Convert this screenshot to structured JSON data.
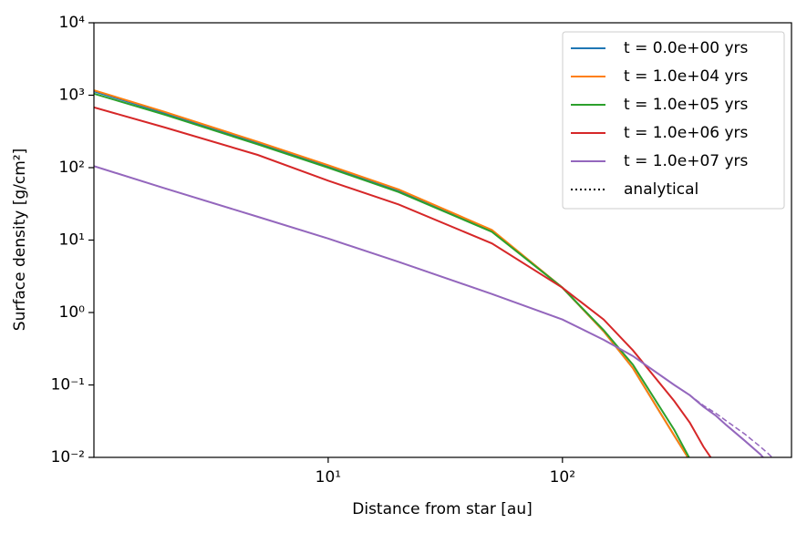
{
  "chart_data": {
    "type": "line",
    "xlabel": "Distance from star [au]",
    "ylabel": "Surface density [g/cm²]",
    "xscale": "log",
    "yscale": "log",
    "xlim": [
      1,
      950
    ],
    "ylim": [
      0.01,
      10000
    ],
    "xticks": [
      {
        "value": 10,
        "label": "10¹"
      },
      {
        "value": 100,
        "label": "10²"
      }
    ],
    "yticks": [
      {
        "value": 0.01,
        "label": "10⁻²"
      },
      {
        "value": 0.1,
        "label": "10⁻¹"
      },
      {
        "value": 1,
        "label": "10⁰"
      },
      {
        "value": 10,
        "label": "10¹"
      },
      {
        "value": 100,
        "label": "10²"
      },
      {
        "value": 1000,
        "label": "10³"
      },
      {
        "value": 10000,
        "label": "10⁴"
      }
    ],
    "legend": "upper right",
    "x": [
      1,
      2,
      5,
      10,
      20,
      50,
      100,
      150,
      200,
      300,
      350,
      400,
      450,
      500,
      600,
      700,
      750,
      800
    ],
    "series": [
      {
        "name": "t = 0.0e+00 yrs",
        "color": "#1f77b4",
        "values": [
          1130,
          570,
          220,
          105,
          48,
          13.5,
          2.2,
          0.55,
          0.17,
          0.02,
          0.009,
          null,
          null,
          null,
          null,
          null,
          null,
          null
        ]
      },
      {
        "name": "t = 1.0e+04 yrs",
        "color": "#ff7f0e",
        "values": [
          1170,
          590,
          228,
          108,
          50,
          13.8,
          2.2,
          0.55,
          0.17,
          0.02,
          0.009,
          null,
          null,
          null,
          null,
          null,
          null,
          null
        ]
      },
      {
        "name": "t = 1.0e+05 yrs",
        "color": "#2ca02c",
        "values": [
          1050,
          540,
          210,
          100,
          46,
          13,
          2.2,
          0.57,
          0.19,
          0.024,
          0.0095,
          null,
          null,
          null,
          null,
          null,
          null,
          null
        ]
      },
      {
        "name": "t = 1.0e+06 yrs",
        "color": "#d62728",
        "values": [
          680,
          360,
          150,
          66,
          31,
          9,
          2.2,
          0.8,
          0.3,
          0.06,
          0.03,
          0.014,
          0.008,
          null,
          null,
          null,
          null,
          null
        ]
      },
      {
        "name": "t = 1.0e+07 yrs",
        "color": "#9467bd",
        "values": [
          105,
          52,
          21,
          10.5,
          5,
          1.8,
          0.8,
          0.42,
          0.25,
          0.1,
          0.072,
          0.05,
          0.038,
          0.028,
          0.017,
          0.011,
          0.0085,
          null
        ]
      },
      {
        "name": "analytical",
        "color": "#000000",
        "style": "dotted",
        "curve_color": "#9467bd",
        "values": [
          105,
          52,
          21,
          10.5,
          5,
          1.8,
          0.8,
          0.42,
          0.25,
          0.1,
          0.072,
          0.052,
          0.041,
          0.032,
          0.021,
          0.014,
          0.0115,
          0.0095
        ]
      }
    ]
  }
}
